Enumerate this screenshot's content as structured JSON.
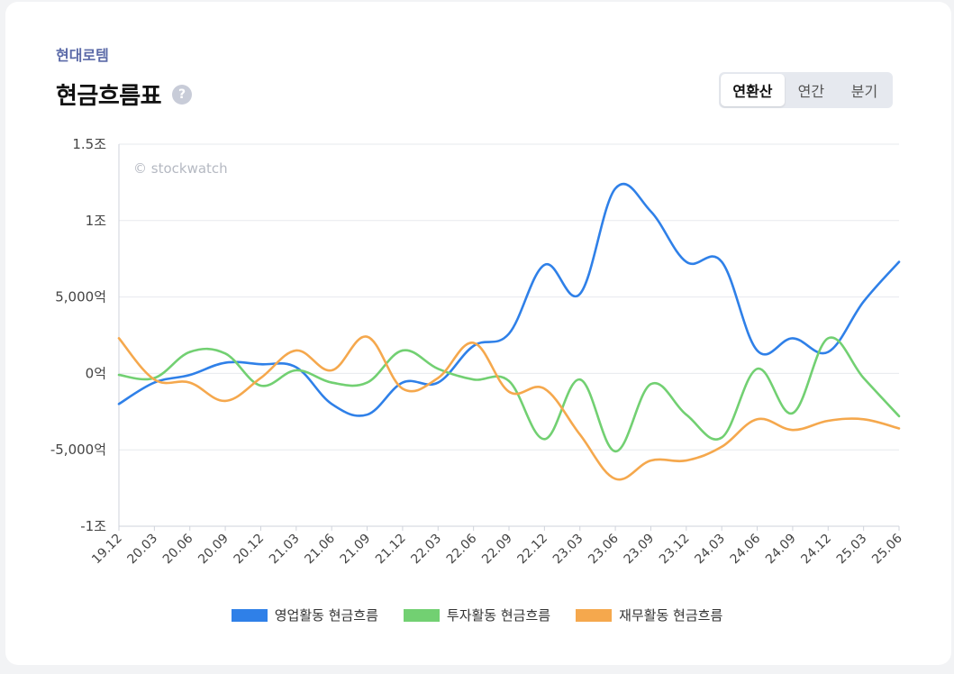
{
  "header": {
    "company": "현대로템",
    "title": "현금흐름표",
    "help_icon": "?"
  },
  "period_toggle": {
    "options": [
      "연환산",
      "연간",
      "분기"
    ],
    "selected": "연환산"
  },
  "watermark": "© stockwatch",
  "chart_data": {
    "type": "line",
    "title": "현금흐름표",
    "xlabel": "",
    "ylabel": "",
    "ylim": [
      -10000,
      15000
    ],
    "y_ticks": [
      15000,
      10000,
      5000,
      0,
      -5000,
      -10000
    ],
    "y_tick_labels": [
      "1.5조",
      "1조",
      "5,000억",
      "0억",
      "-5,000억",
      "-1조"
    ],
    "categories": [
      "19.12",
      "20.03",
      "20.06",
      "20.09",
      "20.12",
      "21.03",
      "21.06",
      "21.09",
      "21.12",
      "22.03",
      "22.06",
      "22.09",
      "22.12",
      "23.03",
      "23.06",
      "23.09",
      "23.12",
      "24.03",
      "24.06",
      "24.09",
      "24.12",
      "25.03",
      "25.06"
    ],
    "grid": true,
    "legend_position": "bottom",
    "series": [
      {
        "name": "영업활동 현금흐름",
        "color": "#2f80e8",
        "values": [
          -2000,
          -600,
          -100,
          700,
          600,
          400,
          -2000,
          -2700,
          -600,
          -600,
          1800,
          2600,
          7100,
          5200,
          12100,
          10600,
          7300,
          7300,
          1500,
          2300,
          1400,
          4700,
          7300
        ]
      },
      {
        "name": "투자활동 현금흐름",
        "color": "#72d072",
        "values": [
          -100,
          -300,
          1400,
          1300,
          -800,
          200,
          -600,
          -600,
          1500,
          300,
          -400,
          -500,
          -4300,
          -400,
          -5100,
          -700,
          -2700,
          -4200,
          300,
          -2600,
          2300,
          -300,
          -2800
        ]
      },
      {
        "name": "재무활동 현금흐름",
        "color": "#f5a84d",
        "values": [
          2300,
          -400,
          -600,
          -1800,
          -300,
          1500,
          200,
          2400,
          -1000,
          -300,
          2000,
          -1200,
          -1000,
          -4000,
          -6900,
          -5700,
          -5700,
          -4800,
          -3000,
          -3700,
          -3100,
          -3000,
          -3600
        ]
      }
    ]
  }
}
